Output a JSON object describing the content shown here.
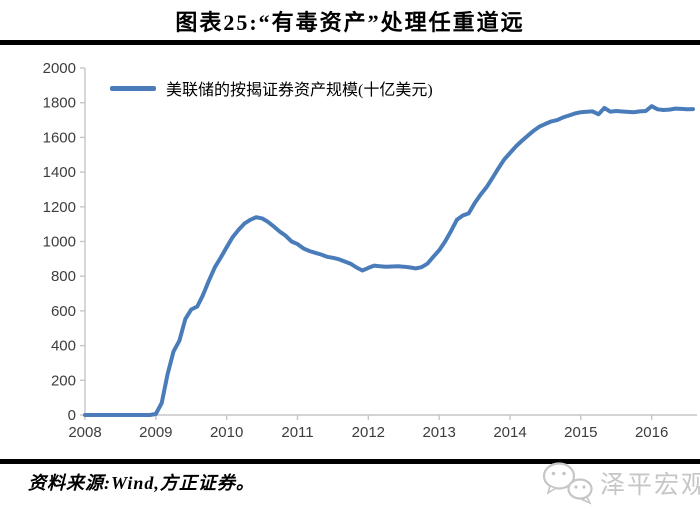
{
  "page": {
    "title": "图表25:“有毒资产”处理任重道远"
  },
  "legend": {
    "label": "美联储的按揭证券资产规模(十亿美元)"
  },
  "footer": {
    "source": "资料来源:Wind,方正证券。",
    "watermark": "泽平宏观"
  },
  "colors": {
    "line": "#4a7cba",
    "axis": "#c6c6c6",
    "tick_label": "#3d3d3d",
    "rule": "#000000",
    "watermark": "#c6c6c6"
  },
  "chart_data": {
    "type": "line",
    "title": "图表25:“有毒资产”处理任重道远",
    "legend_entries": [
      "美联储的按揭证券资产规模(十亿美元)"
    ],
    "legend_position": "top-left",
    "xlabel": "",
    "ylabel": "",
    "grid": false,
    "xlim": [
      2008,
      2016.64
    ],
    "ylim": [
      0,
      2000
    ],
    "y_tick_step": 200,
    "x_ticks": [
      2008,
      2009,
      2010,
      2011,
      2012,
      2013,
      2014,
      2015,
      2016
    ],
    "series": [
      {
        "name": "美联储的按揭证券资产规模(十亿美元)",
        "x_start": 2008.0,
        "x_step": 0.0833333,
        "values": [
          0,
          0,
          0,
          0,
          0,
          0,
          0,
          0,
          0,
          0,
          0,
          0,
          6,
          69,
          236,
          366,
          428,
          553,
          608,
          625,
          693,
          776,
          852,
          908,
          968,
          1025,
          1067,
          1103,
          1125,
          1140,
          1133,
          1113,
          1086,
          1057,
          1033,
          1000,
          985,
          960,
          945,
          935,
          925,
          912,
          906,
          898,
          885,
          872,
          850,
          833,
          848,
          861,
          857,
          855,
          856,
          857,
          855,
          851,
          845,
          852,
          872,
          912,
          950,
          1000,
          1060,
          1125,
          1150,
          1162,
          1220,
          1270,
          1312,
          1365,
          1420,
          1472,
          1510,
          1548,
          1580,
          1610,
          1638,
          1662,
          1678,
          1692,
          1700,
          1715,
          1726,
          1738,
          1745,
          1748,
          1750,
          1733,
          1770,
          1748,
          1752,
          1749,
          1747,
          1745,
          1750,
          1752,
          1780,
          1762,
          1758,
          1760,
          1766,
          1764,
          1762,
          1763
        ]
      }
    ]
  }
}
